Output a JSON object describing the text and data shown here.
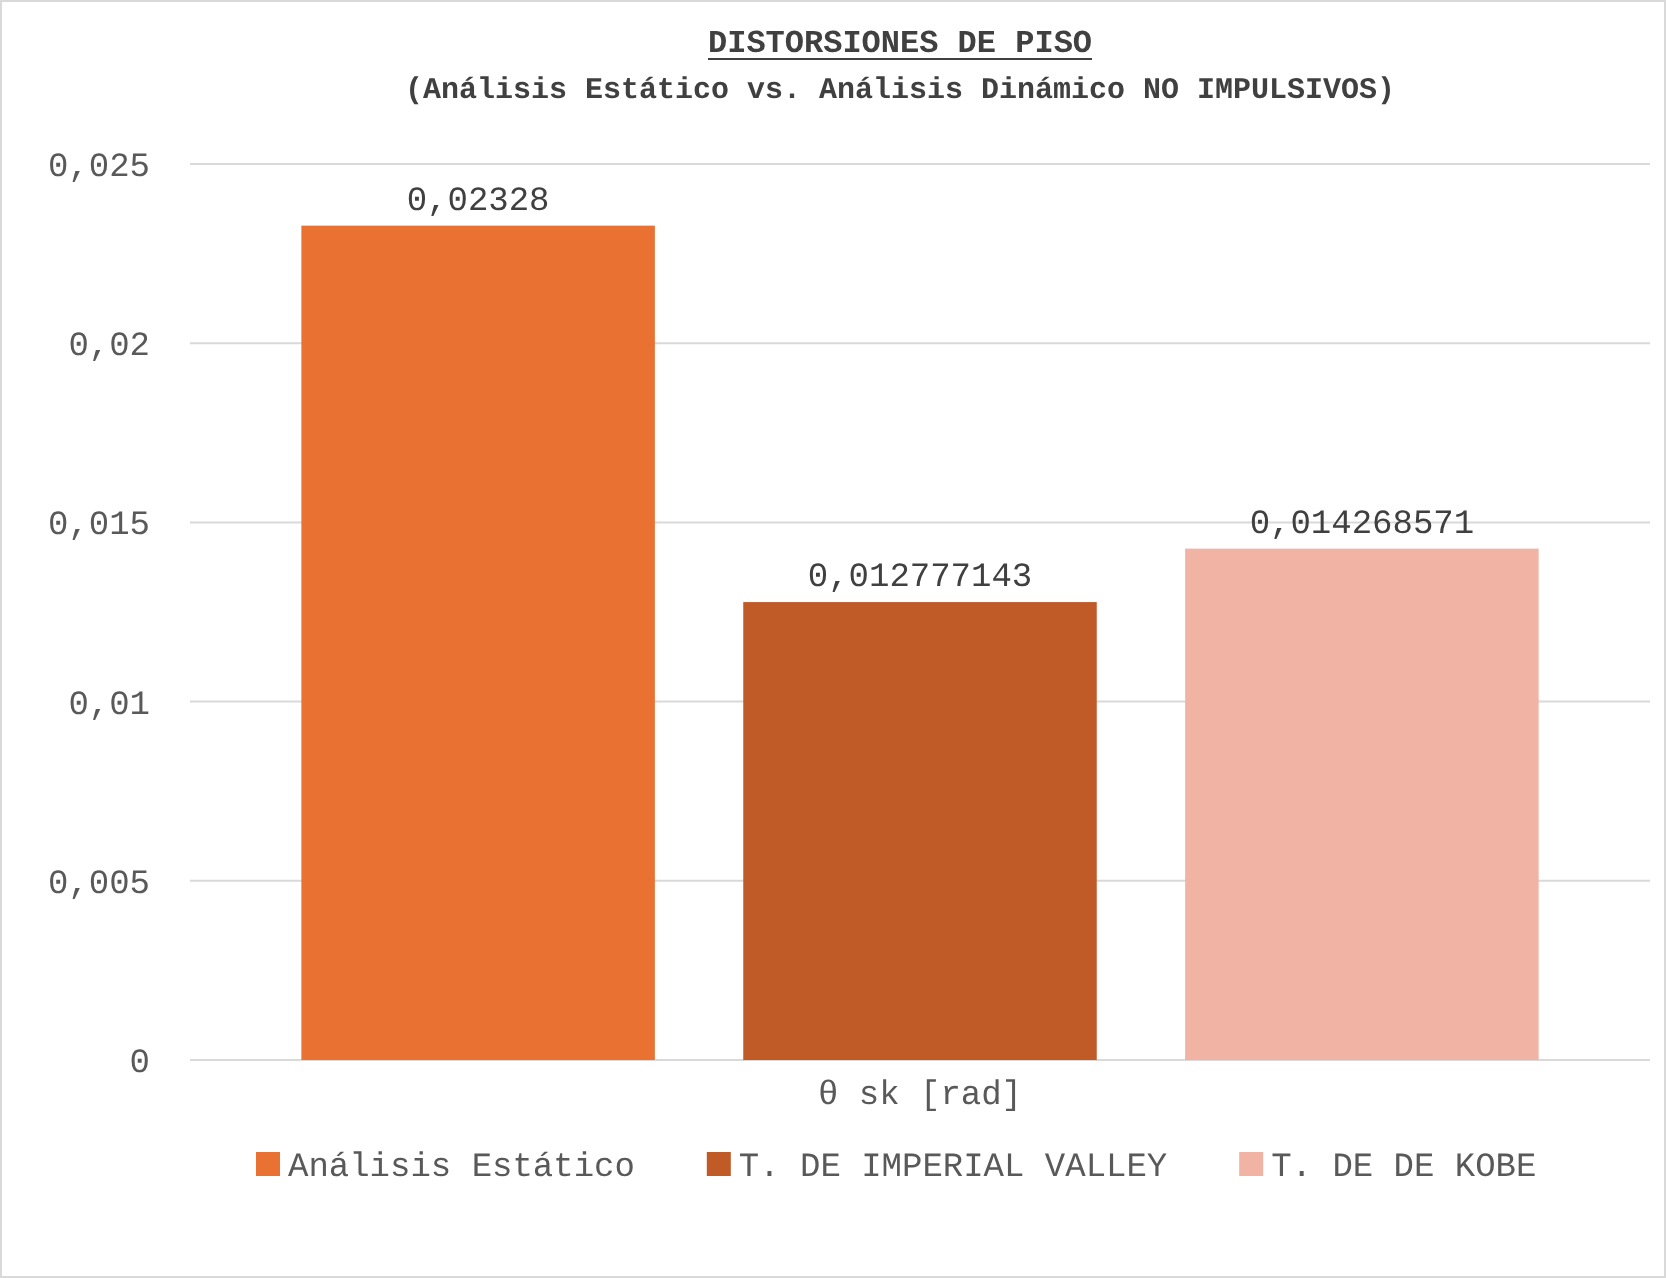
{
  "chart_data": {
    "type": "bar",
    "title": "DISTORSIONES DE PISO",
    "subtitle": "(Análisis Estático vs. Análisis Dinámico NO IMPULSIVOS)",
    "xlabel": "θ sk [rad]",
    "categories": [
      null
    ],
    "series": [
      {
        "name": "Análisis Estático",
        "color": "#e97132",
        "values": [
          0.02328
        ],
        "value_labels": [
          "0,02328"
        ]
      },
      {
        "name": "T. DE IMPERIAL VALLEY",
        "color": "#c05a27",
        "values": [
          0.012777143
        ],
        "value_labels": [
          "0,012777143"
        ]
      },
      {
        "name": "T. DE DE KOBE",
        "color": "#f1b3a4",
        "values": [
          0.014268571
        ],
        "value_labels": [
          "0,014268571"
        ]
      }
    ],
    "ylim": [
      0,
      0.025
    ],
    "yticks": [
      0,
      {
        "value": 0.005,
        "label": "0,005"
      },
      {
        "value": 0.01,
        "label": "0,01"
      },
      {
        "value": 0.015,
        "label": "0,015"
      },
      {
        "value": 0.02,
        "label": "0,02"
      },
      {
        "value": 0.025,
        "label": "0,025"
      }
    ],
    "grid": "y",
    "legend": "bottom"
  }
}
